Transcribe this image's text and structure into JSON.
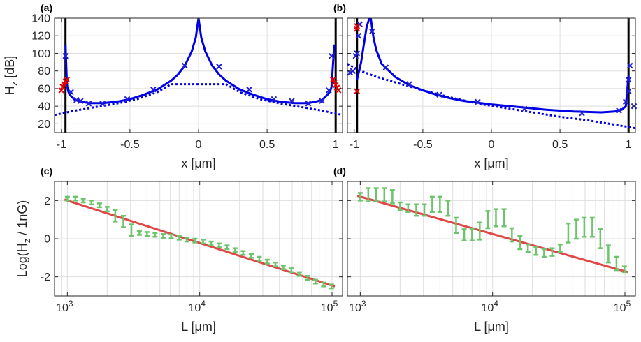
{
  "chart_data": [
    {
      "id": "a",
      "type": "line",
      "panel_label": "(a)",
      "xlabel": "x [μm]",
      "ylabel": "H_z [dB]",
      "xlim": [
        -1.05,
        1.05
      ],
      "ylim": [
        10,
        140
      ],
      "xticks": [
        -1,
        -0.5,
        0,
        0.5,
        1
      ],
      "xticklabels": [
        "-1",
        "-0.5",
        "0",
        "0.5",
        "1"
      ],
      "yticks": [
        20,
        40,
        60,
        80,
        100,
        120,
        140
      ],
      "yticklabels": [
        "20",
        "40",
        "60",
        "80",
        "100",
        "120",
        "140"
      ],
      "grid": true,
      "colors": {
        "model": "#0000e6",
        "markers_blue": "#1f1fd6",
        "markers_red": "#e00000",
        "boundary": "#000000"
      },
      "vlines": [
        -0.97,
        1.0
      ],
      "series": [
        {
          "style": "solid",
          "x": [
            -0.97,
            -0.96,
            -0.95,
            -0.94,
            -0.92,
            -0.9,
            -0.85,
            -0.8,
            -0.7,
            -0.6,
            -0.5,
            -0.4,
            -0.3,
            -0.2,
            -0.15,
            -0.1,
            -0.05,
            -0.02,
            0,
            0.02,
            0.05,
            0.1,
            0.15,
            0.2,
            0.3,
            0.4,
            0.5,
            0.6,
            0.7,
            0.8,
            0.85,
            0.9,
            0.92,
            0.94,
            0.96,
            0.97,
            0.99
          ],
          "y": [
            110,
            65,
            57,
            53,
            50,
            47,
            45,
            43.5,
            43.5,
            45,
            48,
            53,
            59,
            69,
            76,
            86,
            102,
            118,
            140,
            118,
            102,
            86,
            76,
            69,
            59,
            53,
            48,
            45,
            43.5,
            43.5,
            45,
            47,
            50,
            53,
            57,
            62,
            110
          ]
        },
        {
          "style": "dotted",
          "x": [
            -1.05,
            -0.9,
            -0.75,
            -0.6,
            -0.45,
            -0.3,
            -0.2,
            0.2,
            0.3,
            0.45,
            0.6,
            0.75,
            0.9,
            1.05
          ],
          "y": [
            30,
            35,
            39,
            43,
            48,
            56,
            65,
            65,
            56,
            48,
            43,
            39,
            35,
            30
          ]
        },
        {
          "style": "markers",
          "color": "blue",
          "x": [
            -0.97,
            -0.93,
            -0.89,
            -0.86,
            -0.8,
            -0.7,
            -0.52,
            -0.33,
            -0.1,
            0.15,
            0.37,
            0.55,
            0.68,
            0.8,
            0.9,
            0.95,
            0.97
          ],
          "y": [
            97,
            56,
            47,
            46,
            43,
            43,
            48,
            59,
            86,
            85,
            59,
            48,
            46,
            43,
            46,
            58,
            97
          ]
        },
        {
          "style": "markers",
          "color": "red",
          "x": [
            -1.0,
            -0.99,
            -0.98,
            -0.97,
            -0.96,
            0.98,
            0.99,
            1.0,
            1.01,
            1.02
          ],
          "y": [
            58,
            62,
            65,
            68,
            70,
            70,
            67,
            64,
            61,
            58
          ]
        }
      ]
    },
    {
      "id": "b",
      "type": "line",
      "panel_label": "(b)",
      "xlabel": "x [μm]",
      "ylabel": "",
      "xlim": [
        -1.05,
        1.05
      ],
      "ylim": [
        10,
        140
      ],
      "xticks": [
        -1,
        -0.5,
        0,
        0.5,
        1
      ],
      "xticklabels": [
        "-1",
        "-0.5",
        "0",
        "0.5",
        "1"
      ],
      "yticks": [
        20,
        40,
        60,
        80,
        100,
        120,
        140
      ],
      "grid": true,
      "colors": {
        "model": "#0000e6",
        "markers_blue": "#1f1fd6",
        "markers_red": "#e00000",
        "boundary": "#000000"
      },
      "vlines": [
        -0.98,
        1.0
      ],
      "series": [
        {
          "style": "solid",
          "x": [
            -0.98,
            -0.95,
            -0.93,
            -0.91,
            -0.89,
            -0.88,
            -0.86,
            -0.84,
            -0.8,
            -0.7,
            -0.6,
            -0.5,
            -0.4,
            -0.3,
            -0.2,
            -0.1,
            0,
            0.2,
            0.4,
            0.6,
            0.8,
            0.9,
            0.95,
            0.98,
            1.0
          ],
          "y": [
            70,
            90,
            110,
            130,
            140,
            140,
            118,
            104,
            88,
            73,
            64,
            58,
            53,
            49,
            46,
            44,
            42,
            39,
            36,
            34,
            33,
            34,
            36,
            40,
            75
          ]
        },
        {
          "style": "dotted",
          "x": [
            -1.05,
            -0.95,
            -0.85,
            -0.7,
            -0.5,
            -0.3,
            -0.1,
            0.1,
            0.3,
            0.5,
            0.7,
            0.9,
            1.05
          ],
          "y": [
            88,
            80,
            74,
            67,
            58,
            50,
            43,
            38,
            33,
            28,
            24,
            19,
            15
          ]
        },
        {
          "style": "markers",
          "color": "blue",
          "x": [
            -1.03,
            -1.01,
            -0.99,
            -0.98,
            -0.97,
            -0.96,
            -0.87,
            -0.77,
            -0.6,
            -0.38,
            -0.1,
            0.24,
            0.66,
            0.93,
            0.98,
            1.0,
            1.0,
            1.01,
            1.04
          ],
          "y": [
            78,
            80,
            97,
            100,
            120,
            133,
            125,
            84,
            65,
            53,
            45,
            37,
            32,
            35,
            45,
            57,
            70,
            86,
            40
          ]
        },
        {
          "style": "markers",
          "color": "red",
          "x": [
            -0.98,
            -0.98,
            -0.98
          ],
          "y": [
            57,
            128,
            131
          ]
        }
      ]
    },
    {
      "id": "c",
      "type": "line",
      "panel_label": "(c)",
      "xlabel": "L [μm]",
      "ylabel": "Log(H_z / 1nG)",
      "xscale": "log",
      "xlim": [
        800,
        120000
      ],
      "ylim": [
        -3,
        3
      ],
      "xticks": [
        1000,
        10000,
        100000
      ],
      "xticklabels": [
        "10^3",
        "10^4",
        "10^5"
      ],
      "yticks": [
        -2,
        0,
        2
      ],
      "yticklabels": [
        "-2",
        "0",
        "2"
      ],
      "grid": true,
      "colors": {
        "fit": "#e04848",
        "errorbars": "#6cc46c"
      },
      "series": [
        {
          "style": "fit",
          "x": [
            950,
            105000
          ],
          "y": [
            2.05,
            -2.5
          ]
        },
        {
          "style": "errorbars",
          "x": [
            1000,
            1150,
            1320,
            1520,
            1750,
            2000,
            2300,
            2650,
            3050,
            3500,
            4000,
            4600,
            5300,
            6100,
            7000,
            8000,
            9200,
            10600,
            12200,
            14000,
            16100,
            18500,
            21300,
            24500,
            28200,
            32400,
            37300,
            42900,
            49300,
            56700,
            65200,
            75000,
            86300,
            99200
          ],
          "y": [
            2.1,
            2.1,
            2.0,
            1.9,
            1.75,
            1.55,
            1.2,
            0.9,
            0.45,
            0.3,
            0.25,
            0.2,
            0.15,
            0.12,
            0.05,
            -0.05,
            -0.1,
            -0.15,
            -0.25,
            -0.35,
            -0.45,
            -0.6,
            -0.75,
            -0.9,
            -1.05,
            -1.2,
            -1.35,
            -1.5,
            -1.65,
            -1.85,
            -2.05,
            -2.25,
            -2.4,
            -2.5
          ],
          "err": [
            0.1,
            0.1,
            0.1,
            0.1,
            0.1,
            0.12,
            0.3,
            0.3,
            0.3,
            0.1,
            0.1,
            0.1,
            0.1,
            0.1,
            0.1,
            0.1,
            0.1,
            0.1,
            0.1,
            0.1,
            0.1,
            0.1,
            0.1,
            0.1,
            0.1,
            0.1,
            0.1,
            0.1,
            0.1,
            0.1,
            0.1,
            0.1,
            0.1,
            0.1
          ]
        }
      ]
    },
    {
      "id": "d",
      "type": "line",
      "panel_label": "(d)",
      "xlabel": "L [μm]",
      "ylabel": "",
      "xscale": "log",
      "xlim": [
        800,
        120000
      ],
      "ylim": [
        -3,
        3
      ],
      "xticks": [
        1000,
        10000,
        100000
      ],
      "xticklabels": [
        "10^3",
        "10^4",
        "10^5"
      ],
      "yticks": [
        -2,
        0,
        2
      ],
      "grid": true,
      "colors": {
        "fit": "#e04848",
        "errorbars": "#6cc46c"
      },
      "series": [
        {
          "style": "fit",
          "x": [
            950,
            105000
          ],
          "y": [
            2.25,
            -1.75
          ]
        },
        {
          "style": "errorbars",
          "x": [
            1000,
            1150,
            1320,
            1520,
            1750,
            2000,
            2300,
            2650,
            3050,
            3500,
            4000,
            4600,
            5300,
            6100,
            7000,
            8000,
            9200,
            10600,
            12200,
            14000,
            16100,
            18500,
            21300,
            24500,
            28200,
            32400,
            37300,
            42900,
            49300,
            56700,
            65200,
            75000,
            86300,
            99200
          ],
          "y": [
            2.2,
            2.3,
            2.3,
            2.3,
            2.2,
            1.7,
            1.6,
            1.5,
            1.5,
            1.8,
            1.8,
            1.6,
            0.7,
            0.2,
            0.2,
            0.4,
            1.0,
            1.1,
            1.1,
            0.2,
            -0.2,
            -0.5,
            -0.65,
            -0.75,
            -0.7,
            -0.5,
            0.3,
            0.5,
            0.6,
            0.6,
            0.0,
            -0.8,
            -1.3,
            -1.6
          ],
          "err": [
            0.2,
            0.35,
            0.35,
            0.35,
            0.35,
            0.2,
            0.2,
            0.3,
            0.3,
            0.4,
            0.4,
            0.4,
            0.4,
            0.3,
            0.3,
            0.45,
            0.45,
            0.45,
            0.45,
            0.35,
            0.35,
            0.2,
            0.2,
            0.2,
            0.2,
            0.2,
            0.5,
            0.5,
            0.5,
            0.5,
            0.5,
            0.45,
            0.35,
            0.15
          ]
        }
      ]
    }
  ]
}
